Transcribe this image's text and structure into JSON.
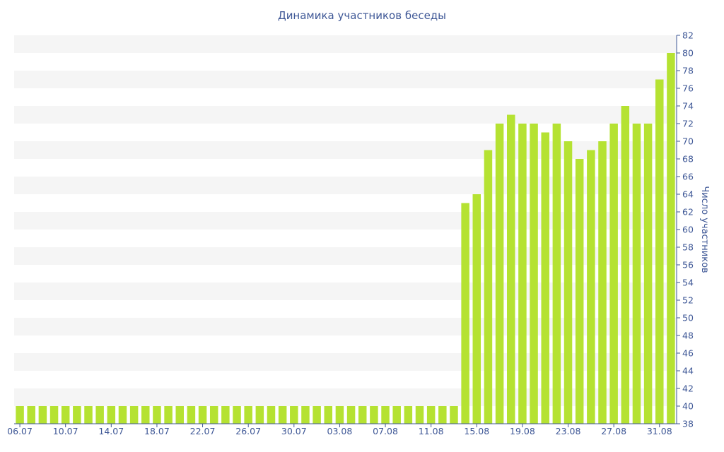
{
  "chart_data": {
    "type": "bar",
    "title": "Динамика участников беседы",
    "xlabel": "",
    "ylabel": "Число участников",
    "ylim": [
      38,
      82
    ],
    "y_ticks": [
      38,
      40,
      42,
      44,
      46,
      48,
      50,
      52,
      54,
      56,
      58,
      60,
      62,
      64,
      66,
      68,
      70,
      72,
      74,
      76,
      78,
      80,
      82
    ],
    "y_axis_side": "right",
    "grid": "alternating horizontal bands",
    "x_tick_labels": [
      "06.07",
      "10.07",
      "14.07",
      "18.07",
      "22.07",
      "26.07",
      "30.07",
      "03.08",
      "07.08",
      "11.08",
      "15.08",
      "19.08",
      "23.08",
      "27.08",
      "31.08"
    ],
    "categories": [
      "06.07",
      "07.07",
      "08.07",
      "09.07",
      "10.07",
      "11.07",
      "12.07",
      "13.07",
      "14.07",
      "15.07",
      "16.07",
      "17.07",
      "18.07",
      "19.07",
      "20.07",
      "21.07",
      "22.07",
      "23.07",
      "24.07",
      "25.07",
      "26.07",
      "27.07",
      "28.07",
      "29.07",
      "30.07",
      "31.07",
      "01.08",
      "02.08",
      "03.08",
      "04.08",
      "05.08",
      "06.08",
      "07.08",
      "08.08",
      "09.08",
      "10.08",
      "11.08",
      "12.08",
      "13.08",
      "14.08",
      "15.08",
      "16.08",
      "17.08",
      "18.08",
      "19.08",
      "20.08",
      "21.08",
      "22.08",
      "23.08",
      "24.08",
      "25.08",
      "26.08",
      "27.08",
      "28.08",
      "29.08",
      "30.08",
      "31.08",
      "01.09"
    ],
    "values": [
      40,
      40,
      40,
      40,
      40,
      40,
      40,
      40,
      40,
      40,
      40,
      40,
      40,
      40,
      40,
      40,
      40,
      40,
      40,
      40,
      40,
      40,
      40,
      40,
      40,
      40,
      40,
      40,
      40,
      40,
      40,
      40,
      40,
      40,
      40,
      40,
      40,
      40,
      40,
      63,
      64,
      69,
      72,
      73,
      72,
      72,
      71,
      72,
      70,
      68,
      69,
      70,
      72,
      74,
      72,
      72,
      77,
      80
    ],
    "colors": {
      "bar": "#b5e232",
      "band": "#f5f5f5",
      "text": "#3e5796",
      "axis": "#3e5796"
    }
  }
}
